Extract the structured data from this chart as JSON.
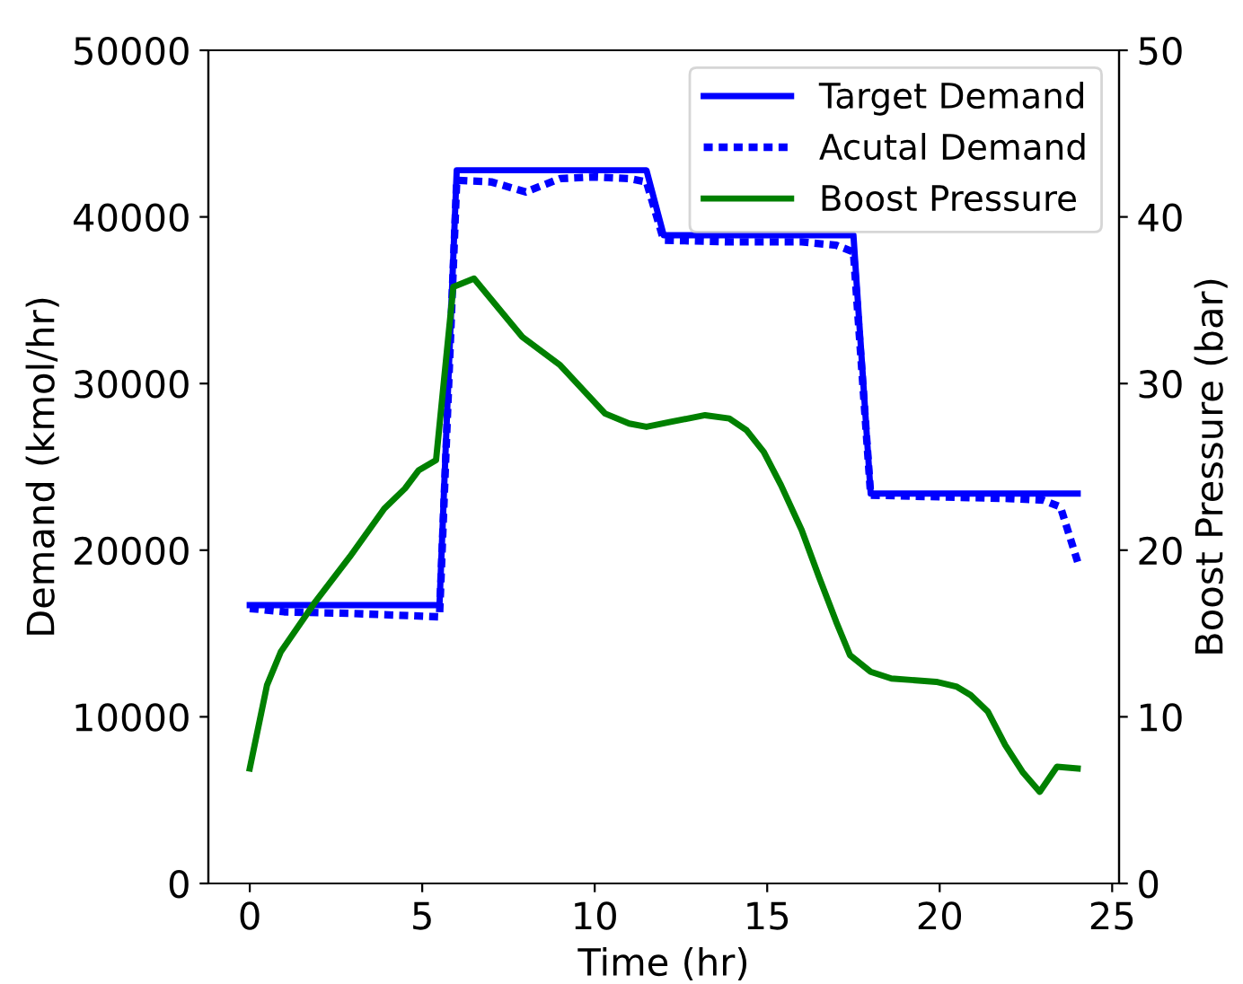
{
  "chart_data": {
    "type": "line",
    "xlabel": "Time (hr)",
    "ylabel": "Demand (kmol/hr)",
    "y2label": "Boost Pressure (bar)",
    "xlim": [
      -1.2,
      25.2
    ],
    "xticks": [
      0,
      5,
      10,
      15,
      20,
      25
    ],
    "ylim": [
      0,
      50000
    ],
    "yticks": [
      0,
      10000,
      20000,
      30000,
      40000,
      50000
    ],
    "y2lim": [
      0,
      50
    ],
    "y2ticks": [
      0,
      10,
      20,
      30,
      40,
      50
    ],
    "grid": false,
    "legend": "top right",
    "marker": "none",
    "series": [
      {
        "name": "Target Demand",
        "color": "#0000ff",
        "line_style": "solid",
        "x": [
          0,
          5.5,
          6,
          11.5,
          12,
          17.5,
          18,
          24
        ],
        "values": [
          16700,
          16700,
          42800,
          42800,
          38900,
          38900,
          23400,
          23400
        ]
      },
      {
        "name": "Acutal Demand",
        "color": "#0000ff",
        "line_style": "dotted",
        "x": [
          0,
          1,
          3,
          5.5,
          6,
          7,
          8,
          9,
          10,
          11,
          11.5,
          12,
          14,
          16,
          17,
          17.5,
          18,
          20,
          22,
          23,
          23.5,
          24
        ],
        "values": [
          16500,
          16300,
          16200,
          16000,
          42200,
          42100,
          41500,
          42300,
          42400,
          42300,
          42100,
          38600,
          38500,
          38500,
          38300,
          37900,
          23300,
          23200,
          23100,
          23000,
          22600,
          19300
        ]
      },
      {
        "name": "Boost Pressure",
        "color": "#008000",
        "line_style": "solid",
        "axis": "y2",
        "x": [
          0,
          0.5,
          0.9,
          1.9,
          2.9,
          3.9,
          4.5,
          4.9,
          5.4,
          5.9,
          6.5,
          7.5,
          7.9,
          9.0,
          10.3,
          11.0,
          11.5,
          12.2,
          13.2,
          13.9,
          14.4,
          14.9,
          15.4,
          16.0,
          16.5,
          17.0,
          17.4,
          18.0,
          18.6,
          19.9,
          20.5,
          20.9,
          21.4,
          21.9,
          22.4,
          22.9,
          23.4,
          24.0
        ],
        "values": [
          6.9,
          11.9,
          13.9,
          16.9,
          19.6,
          22.5,
          23.7,
          24.8,
          25.4,
          35.8,
          36.3,
          33.8,
          32.8,
          31.1,
          28.2,
          27.6,
          27.4,
          27.7,
          28.1,
          27.9,
          27.2,
          25.9,
          23.9,
          21.2,
          18.4,
          15.7,
          13.7,
          12.7,
          12.3,
          12.1,
          11.8,
          11.3,
          10.3,
          8.3,
          6.7,
          5.5,
          7.0,
          6.9
        ]
      }
    ]
  }
}
